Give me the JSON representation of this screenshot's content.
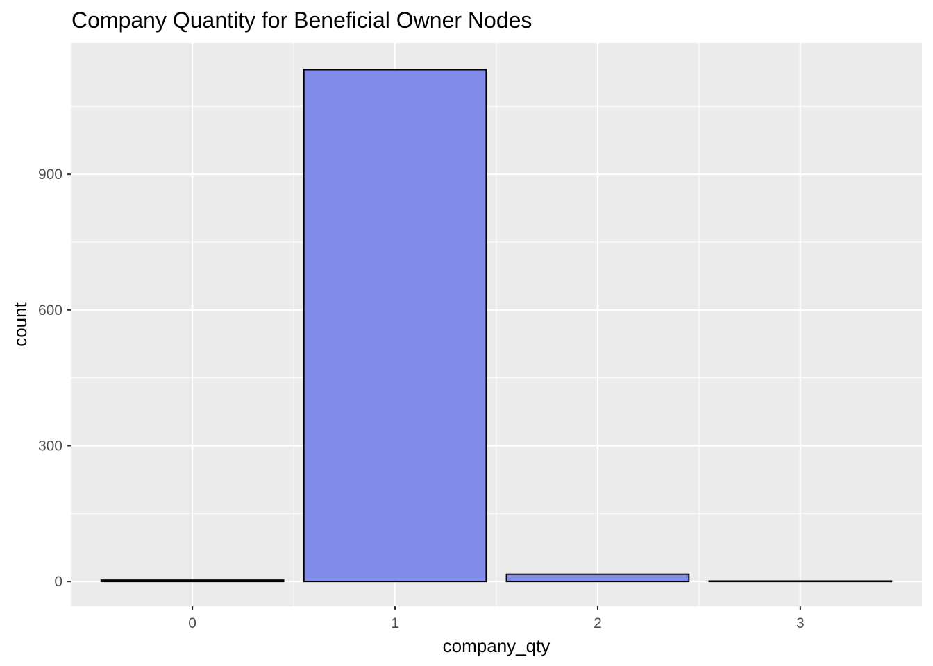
{
  "chart_data": {
    "type": "bar",
    "title": "Company Quantity for Beneficial Owner Nodes",
    "xlabel": "company_qty",
    "ylabel": "count",
    "categories": [
      "0",
      "1",
      "2",
      "3"
    ],
    "values": [
      3,
      1131,
      16,
      1
    ],
    "ylim": [
      -55,
      1190
    ],
    "yticks": [
      0,
      300,
      600,
      900
    ],
    "ytick_labels": [
      "0",
      "300",
      "600",
      "900"
    ],
    "grid": true,
    "legend": "none",
    "colors": {
      "bar_fill": "#818DE8",
      "bar_outline": "#000000",
      "panel_background": "#EBEBEB",
      "grid_major": "#FFFFFF",
      "tick_text": "#4D4D4D",
      "tick_mark": "#333333"
    }
  }
}
